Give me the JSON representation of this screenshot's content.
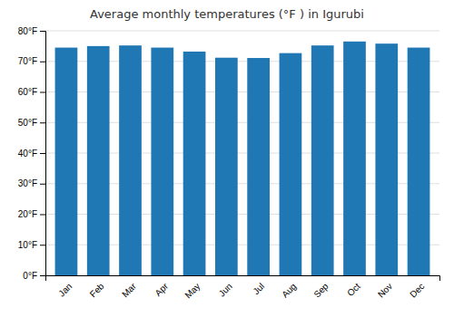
{
  "chart_data": {
    "type": "bar",
    "title": "Average monthly temperatures (°F ) in Igurubi",
    "categories": [
      "Jan",
      "Feb",
      "Mar",
      "Apr",
      "May",
      "Jun",
      "Jul",
      "Aug",
      "Sep",
      "Oct",
      "Nov",
      "Dec"
    ],
    "values": [
      74.5,
      75.0,
      75.2,
      74.5,
      73.2,
      71.2,
      71.1,
      72.7,
      75.2,
      76.5,
      75.8,
      74.5
    ],
    "ylim": [
      0,
      80
    ],
    "yticks": [
      {
        "value": 0,
        "label": "0°F"
      },
      {
        "value": 10,
        "label": "10°F"
      },
      {
        "value": 20,
        "label": "20°F"
      },
      {
        "value": 30,
        "label": "30°F"
      },
      {
        "value": 40,
        "label": "40°F"
      },
      {
        "value": 50,
        "label": "50°F"
      },
      {
        "value": 60,
        "label": "60°F"
      },
      {
        "value": 70,
        "label": "70°F"
      },
      {
        "value": 80,
        "label": "80°F"
      }
    ],
    "grid": true
  }
}
